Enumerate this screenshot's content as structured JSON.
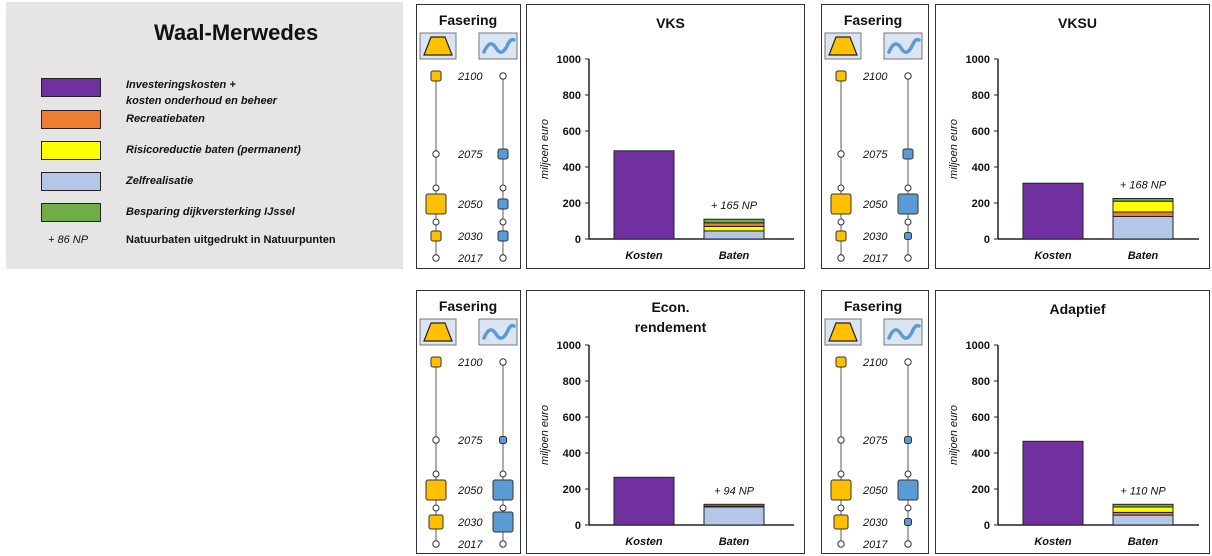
{
  "legend": {
    "title": "Waal-Merwedes",
    "items": [
      {
        "color": "#7030a0",
        "lines": [
          "Investeringskosten  +",
          "kosten onderhoud en beheer"
        ]
      },
      {
        "color": "#ed7d31",
        "lines": [
          "Recreatiebaten"
        ]
      },
      {
        "color": "#ffff00",
        "lines": [
          "Risicoreductie  baten (permanent)"
        ]
      },
      {
        "color": "#b4c7e7",
        "lines": [
          "Zelfrealisatie"
        ]
      },
      {
        "color": "#70ad47",
        "lines": [
          "Besparing dijkversterking IJssel"
        ]
      }
    ],
    "np_symbol": "+ 86 NP",
    "np_text": "Natuurbaten uitgedrukt in Natuurpunten"
  },
  "colors": {
    "dike": "#ffc000",
    "river": "#5b9bd5",
    "kosten": "#7030a0"
  },
  "fasering": {
    "title": "Fasering",
    "dike_icon": "dike-trapezoid-icon",
    "river_icon": "river-wave-icon",
    "years": [
      "2100",
      "2075",
      "2050",
      "2030",
      "2017"
    ]
  },
  "chart_data": [
    {
      "type": "bar",
      "title": "VKS",
      "ylabel": "miljoen euro",
      "ylim": [
        0,
        1000
      ],
      "yticks": [
        "0",
        "200",
        "400",
        "600",
        "800",
        "1000"
      ],
      "categories": [
        "Kosten",
        "Baten"
      ],
      "series": [
        {
          "name": "Investeringskosten + kosten onderhoud en beheer",
          "values": [
            490,
            0
          ]
        },
        {
          "name": "Zelfrealisatie",
          "values": [
            0,
            45
          ]
        },
        {
          "name": "Risicoreductie baten (permanent)",
          "values": [
            0,
            25
          ]
        },
        {
          "name": "Recreatiebaten",
          "values": [
            0,
            20
          ]
        },
        {
          "name": "Besparing dijkversterking IJssel",
          "values": [
            0,
            20
          ]
        }
      ],
      "np_label": "+ 165 NP",
      "phasing": {
        "dike": [
          [
            "2100",
            "small"
          ],
          [
            "2050",
            "large"
          ],
          [
            "2030",
            "small"
          ]
        ],
        "river": [
          [
            "2075",
            "small"
          ],
          [
            "2050",
            "small"
          ],
          [
            "2030",
            "small"
          ]
        ]
      }
    },
    {
      "type": "bar",
      "title": "VKSU",
      "ylabel": "miljoen euro",
      "ylim": [
        0,
        1000
      ],
      "yticks": [
        "0",
        "200",
        "400",
        "600",
        "800",
        "1000"
      ],
      "categories": [
        "Kosten",
        "Baten"
      ],
      "series": [
        {
          "name": "Investeringskosten + kosten onderhoud en beheer",
          "values": [
            310,
            0
          ]
        },
        {
          "name": "Zelfrealisatie",
          "values": [
            0,
            125
          ]
        },
        {
          "name": "Recreatiebaten",
          "values": [
            0,
            25
          ]
        },
        {
          "name": "Risicoreductie baten (permanent)",
          "values": [
            0,
            60
          ]
        },
        {
          "name": "Besparing dijkversterking IJssel",
          "values": [
            0,
            15
          ]
        }
      ],
      "np_label": "+ 168 NP",
      "phasing": {
        "dike": [
          [
            "2100",
            "small"
          ],
          [
            "2050",
            "large"
          ],
          [
            "2030",
            "small"
          ]
        ],
        "river": [
          [
            "2075",
            "small"
          ],
          [
            "2050",
            "large"
          ],
          [
            "2030",
            "tiny"
          ]
        ]
      }
    },
    {
      "type": "bar",
      "title": "Econ. rendement",
      "title_lines": [
        "Econ.",
        "rendement"
      ],
      "ylabel": "miljoen euro",
      "ylim": [
        0,
        1000
      ],
      "yticks": [
        "0",
        "200",
        "400",
        "600",
        "800",
        "1000"
      ],
      "categories": [
        "Kosten",
        "Baten"
      ],
      "series": [
        {
          "name": "Investeringskosten + kosten onderhoud en beheer",
          "values": [
            265,
            0
          ]
        },
        {
          "name": "Zelfrealisatie",
          "values": [
            0,
            100
          ]
        },
        {
          "name": "Risicoreductie baten (permanent)",
          "values": [
            0,
            5
          ]
        },
        {
          "name": "Recreatiebaten",
          "values": [
            0,
            10
          ]
        },
        {
          "name": "Besparing dijkversterking IJssel",
          "values": [
            0,
            0
          ]
        }
      ],
      "np_label": "+ 94 NP",
      "phasing": {
        "dike": [
          [
            "2100",
            "small"
          ],
          [
            "2050",
            "large"
          ],
          [
            "2030",
            "medium"
          ]
        ],
        "river": [
          [
            "2075",
            "tiny"
          ],
          [
            "2050",
            "large"
          ],
          [
            "2030",
            "large"
          ]
        ]
      }
    },
    {
      "type": "bar",
      "title": "Adaptief",
      "ylabel": "miljoen euro",
      "ylim": [
        0,
        1000
      ],
      "yticks": [
        "0",
        "200",
        "400",
        "600",
        "800",
        "1000"
      ],
      "categories": [
        "Kosten",
        "Baten"
      ],
      "series": [
        {
          "name": "Investeringskosten + kosten onderhoud en beheer",
          "values": [
            465,
            0
          ]
        },
        {
          "name": "Zelfrealisatie",
          "values": [
            0,
            55
          ]
        },
        {
          "name": "Recreatiebaten",
          "values": [
            0,
            15
          ]
        },
        {
          "name": "Risicoreductie baten (permanent)",
          "values": [
            0,
            30
          ]
        },
        {
          "name": "Besparing dijkversterking IJssel",
          "values": [
            0,
            15
          ]
        }
      ],
      "np_label": "+ 110 NP",
      "phasing": {
        "dike": [
          [
            "2100",
            "small"
          ],
          [
            "2050",
            "large"
          ],
          [
            "2030",
            "medium"
          ]
        ],
        "river": [
          [
            "2075",
            "tiny"
          ],
          [
            "2050",
            "large"
          ],
          [
            "2030",
            "tiny"
          ]
        ]
      }
    }
  ]
}
